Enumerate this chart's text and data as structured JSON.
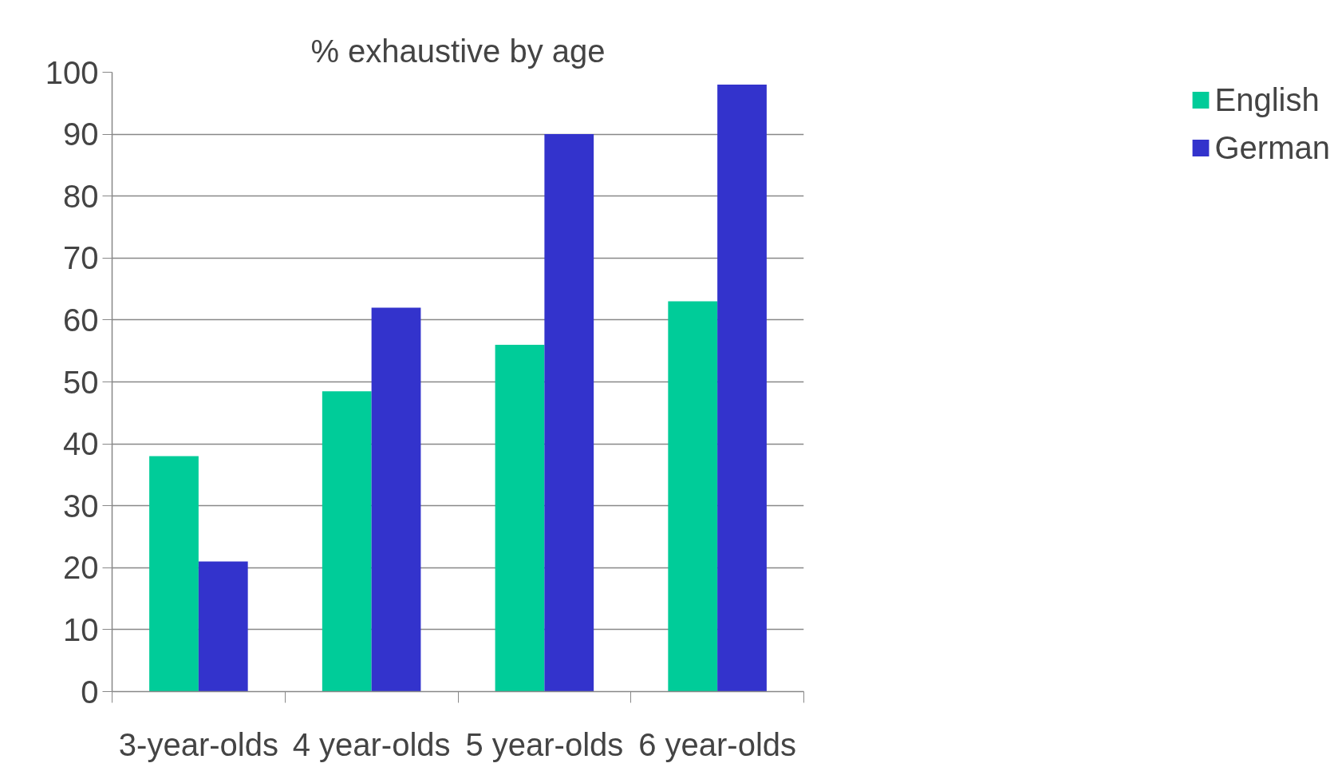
{
  "chart_data": {
    "type": "bar",
    "title": "% exhaustive by age",
    "categories": [
      "3-year-olds",
      "4 year-olds",
      "5 year-olds",
      "6 year-olds"
    ],
    "series": [
      {
        "name": "English",
        "color": "#00cc99",
        "values": [
          38,
          48.5,
          56,
          63
        ]
      },
      {
        "name": "German",
        "color": "#3333cc",
        "values": [
          21,
          62,
          90,
          98
        ]
      }
    ],
    "ylim": [
      0,
      100
    ],
    "yticks": [
      0,
      10,
      20,
      30,
      40,
      50,
      60,
      70,
      80,
      90,
      100
    ],
    "grid": "y",
    "legend": "right"
  }
}
